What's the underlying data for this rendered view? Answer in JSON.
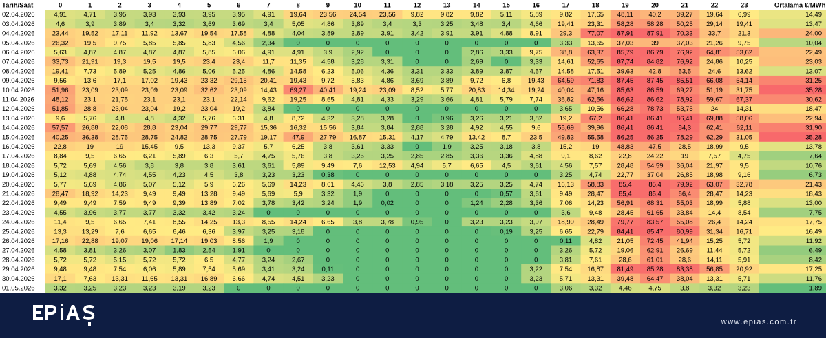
{
  "colors": {
    "low": "#63be7b",
    "mid": "#ffeb84",
    "high": "#f8696b",
    "footer_bg": "#0e1d43",
    "footer_text": "#e6ebf5"
  },
  "footer": {
    "logo_text": "EPİAŞ",
    "website": "www.epias.com.tr"
  },
  "chart_data": {
    "type": "heatmap",
    "corner_label": "Tarih/Saat",
    "avg_label": "Ortalama €/MWh",
    "columns": [
      "0",
      "1",
      "2",
      "3",
      "4",
      "5",
      "6",
      "7",
      "8",
      "9",
      "10",
      "11",
      "12",
      "13",
      "14",
      "15",
      "16",
      "17",
      "18",
      "19",
      "20",
      "21",
      "22",
      "23"
    ],
    "rows": [
      {
        "date": "02.04.2026",
        "values": [
          "4,91",
          "4,71",
          "3,95",
          "3,93",
          "3,93",
          "3,95",
          "3,95",
          "4,91",
          "19,64",
          "23,56",
          "24,54",
          "23,56",
          "9,82",
          "9,82",
          "9,82",
          "5,11",
          "5,89",
          "9,82",
          "17,65",
          "48,11",
          "40,2",
          "39,27",
          "19,64",
          "6,99"
        ],
        "avg": "14,49"
      },
      {
        "date": "03.04.2026",
        "values": [
          "4,6",
          "3,9",
          "3,89",
          "3,4",
          "3,32",
          "3,69",
          "3,69",
          "3,4",
          "5,05",
          "4,86",
          "3,89",
          "3,4",
          "3,3",
          "3,25",
          "3,48",
          "3,4",
          "4,66",
          "19,41",
          "23,31",
          "58,28",
          "58,28",
          "50,25",
          "29,14",
          "19,41"
        ],
        "avg": "13,47"
      },
      {
        "date": "04.04.2026",
        "values": [
          "23,44",
          "19,52",
          "17,11",
          "11,92",
          "13,67",
          "19,54",
          "17,58",
          "4,88",
          "4,04",
          "3,89",
          "3,89",
          "3,91",
          "3,42",
          "3,91",
          "3,91",
          "4,88",
          "8,91",
          "29,3",
          "77,07",
          "87,91",
          "87,91",
          "70,33",
          "33,7",
          "21,3"
        ],
        "avg": "24,00"
      },
      {
        "date": "05.04.2026",
        "values": [
          "26,32",
          "19,5",
          "9,75",
          "5,85",
          "5,85",
          "5,83",
          "4,56",
          "2,34",
          "0",
          "0",
          "0",
          "0",
          "0",
          "0",
          "0",
          "0",
          "0",
          "3,33",
          "13,65",
          "37,03",
          "39",
          "37,03",
          "21,26",
          "9,75"
        ],
        "avg": "10,04"
      },
      {
        "date": "06.04.2026",
        "values": [
          "5,63",
          "4,87",
          "4,87",
          "4,87",
          "4,87",
          "5,85",
          "6,06",
          "4,91",
          "4,91",
          "3,9",
          "2,92",
          "0",
          "0",
          "0",
          "2,86",
          "3,33",
          "9,75",
          "38,8",
          "63,37",
          "85,79",
          "86,79",
          "76,92",
          "64,81",
          "53,62"
        ],
        "avg": "22,49"
      },
      {
        "date": "07.04.2026",
        "values": [
          "33,73",
          "21,91",
          "19,3",
          "19,5",
          "19,5",
          "23,4",
          "23,4",
          "11,7",
          "11,35",
          "4,58",
          "3,28",
          "3,31",
          "0",
          "0",
          "2,69",
          "0",
          "3,33",
          "14,61",
          "52,65",
          "87,74",
          "84,82",
          "76,92",
          "24,86",
          "10,25"
        ],
        "avg": "23,03"
      },
      {
        "date": "08.04.2026",
        "values": [
          "19,41",
          "7,73",
          "5,89",
          "5,25",
          "4,86",
          "5,06",
          "5,25",
          "4,86",
          "14,58",
          "6,23",
          "5,06",
          "4,36",
          "3,31",
          "3,33",
          "3,89",
          "3,87",
          "4,57",
          "14,58",
          "17,51",
          "39,63",
          "42,8",
          "53,5",
          "24,6",
          "13,62"
        ],
        "avg": "13,07"
      },
      {
        "date": "09.04.2026",
        "values": [
          "9,56",
          "13,6",
          "17,1",
          "17,02",
          "19,43",
          "23,32",
          "29,15",
          "20,41",
          "19,43",
          "9,72",
          "5,83",
          "4,86",
          "3,69",
          "3,89",
          "9,72",
          "6,8",
          "19,43",
          "64,59",
          "71,83",
          "87,45",
          "87,45",
          "85,51",
          "66,08",
          "54,14"
        ],
        "avg": "31,25"
      },
      {
        "date": "10.04.2026",
        "values": [
          "51,96",
          "23,09",
          "23,09",
          "23,09",
          "23,09",
          "32,62",
          "23,09",
          "14,43",
          "69,27",
          "40,41",
          "19,24",
          "23,09",
          "8,52",
          "5,77",
          "20,83",
          "14,34",
          "19,24",
          "40,04",
          "47,16",
          "85,63",
          "86,59",
          "69,27",
          "51,19",
          "31,75"
        ],
        "avg": "35,28"
      },
      {
        "date": "11.04.2026",
        "values": [
          "48,12",
          "23,1",
          "21,75",
          "23,1",
          "23,1",
          "23,1",
          "22,14",
          "9,62",
          "19,25",
          "8,65",
          "4,81",
          "4,33",
          "3,29",
          "3,66",
          "4,81",
          "5,79",
          "7,74",
          "36,82",
          "62,56",
          "86,62",
          "86,62",
          "78,92",
          "59,67",
          "67,37"
        ],
        "avg": "30,62"
      },
      {
        "date": "12.04.2026",
        "values": [
          "51,85",
          "28,8",
          "23,04",
          "23,04",
          "19,2",
          "23,04",
          "19,2",
          "3,84",
          "0",
          "0",
          "0",
          "0",
          "0",
          "0",
          "0",
          "0",
          "0",
          "3,65",
          "10,56",
          "66,28",
          "78,73",
          "53,75",
          "24",
          "14,31"
        ],
        "avg": "18,47"
      },
      {
        "date": "13.04.2026",
        "values": [
          "9,6",
          "5,76",
          "4,8",
          "4,8",
          "4,32",
          "5,76",
          "6,31",
          "4,8",
          "8,72",
          "4,32",
          "3,28",
          "3,28",
          "0",
          "0,96",
          "3,26",
          "3,21",
          "3,82",
          "19,2",
          "67,2",
          "86,41",
          "86,41",
          "86,41",
          "69,88",
          "58,06"
        ],
        "avg": "22,94"
      },
      {
        "date": "14.04.2026",
        "values": [
          "57,57",
          "26,88",
          "22,08",
          "28,8",
          "23,04",
          "29,77",
          "29,77",
          "15,36",
          "16,32",
          "15,56",
          "3,84",
          "3,84",
          "2,88",
          "3,28",
          "4,92",
          "4,55",
          "9,6",
          "55,69",
          "39,96",
          "86,41",
          "86,41",
          "84,3",
          "62,41",
          "62,11"
        ],
        "avg": "31,90"
      },
      {
        "date": "15.04.2026",
        "values": [
          "40,25",
          "36,38",
          "28,75",
          "28,75",
          "24,82",
          "28,75",
          "27,79",
          "19,17",
          "47,9",
          "27,79",
          "16,87",
          "15,31",
          "4,17",
          "4,79",
          "13,42",
          "8,7",
          "23,5",
          "49,83",
          "55,58",
          "86,25",
          "86,25",
          "78,29",
          "62,29",
          "31,05"
        ],
        "avg": "35,28"
      },
      {
        "date": "16.04.2026",
        "values": [
          "22,8",
          "19",
          "19",
          "15,45",
          "9,5",
          "13,3",
          "9,37",
          "5,7",
          "6,25",
          "3,8",
          "3,61",
          "3,33",
          "0",
          "1,9",
          "3,25",
          "3,18",
          "3,8",
          "15,2",
          "19",
          "48,83",
          "47,5",
          "28,5",
          "18,99",
          "9,5"
        ],
        "avg": "13,78"
      },
      {
        "date": "17.04.2026",
        "values": [
          "8,84",
          "9,5",
          "6,65",
          "6,21",
          "5,89",
          "6,3",
          "5,7",
          "4,75",
          "5,76",
          "3,8",
          "3,25",
          "3,25",
          "2,85",
          "2,85",
          "3,36",
          "3,36",
          "4,88",
          "9,1",
          "8,62",
          "22,8",
          "24,22",
          "19",
          "7,57",
          "4,75"
        ],
        "avg": "7,64"
      },
      {
        "date": "18.04.2026",
        "values": [
          "5,72",
          "5,69",
          "4,56",
          "3,8",
          "3,8",
          "3,8",
          "3,61",
          "3,61",
          "5,89",
          "9,49",
          "7,6",
          "12,53",
          "4,94",
          "5,7",
          "6,65",
          "4,5",
          "3,61",
          "4,56",
          "7,57",
          "28,48",
          "54,59",
          "36,04",
          "21,97",
          "9,5"
        ],
        "avg": "10,76"
      },
      {
        "date": "19.04.2026",
        "values": [
          "5,12",
          "4,88",
          "4,74",
          "4,55",
          "4,23",
          "4,5",
          "3,8",
          "3,23",
          "3,23",
          "0,38",
          "0",
          "0",
          "0",
          "0",
          "0",
          "0",
          "0",
          "3,25",
          "4,74",
          "22,77",
          "37,04",
          "26,85",
          "18,98",
          "9,16"
        ],
        "avg": "6,73"
      },
      {
        "date": "20.04.2026",
        "values": [
          "5,77",
          "5,69",
          "4,86",
          "5,07",
          "5,12",
          "5,9",
          "6,26",
          "5,69",
          "14,23",
          "8,61",
          "4,46",
          "3,8",
          "2,85",
          "3,18",
          "3,25",
          "3,25",
          "4,74",
          "16,13",
          "58,83",
          "85,4",
          "85,4",
          "79,92",
          "63,07",
          "32,78"
        ],
        "avg": "21,43"
      },
      {
        "date": "21.04.2026",
        "values": [
          "28,47",
          "18,92",
          "14,23",
          "9,49",
          "9,49",
          "13,28",
          "9,49",
          "5,69",
          "5,9",
          "3,32",
          "1,9",
          "0",
          "0",
          "0",
          "0",
          "0,57",
          "3,61",
          "9,49",
          "28,47",
          "85,4",
          "85,4",
          "66,4",
          "28,47",
          "14,23"
        ],
        "avg": "18,43"
      },
      {
        "date": "22.04.2026",
        "values": [
          "9,49",
          "9,49",
          "7,59",
          "9,49",
          "9,39",
          "13,89",
          "7,02",
          "3,78",
          "3,42",
          "3,24",
          "1,9",
          "0,02",
          "0",
          "0",
          "1,24",
          "2,28",
          "3,36",
          "7,06",
          "14,23",
          "56,91",
          "68,31",
          "55,03",
          "18,99",
          "5,88"
        ],
        "avg": "13,00"
      },
      {
        "date": "23.04.2026",
        "values": [
          "4,55",
          "3,96",
          "3,77",
          "3,77",
          "3,32",
          "3,42",
          "3,24",
          "0",
          "0",
          "0",
          "0",
          "0",
          "0",
          "0",
          "0",
          "0",
          "0",
          "3,6",
          "9,48",
          "28,45",
          "61,65",
          "33,84",
          "14,4",
          "8,54"
        ],
        "avg": "7,75"
      },
      {
        "date": "24.04.2026",
        "values": [
          "11,4",
          "9,5",
          "6,65",
          "7,41",
          "8,55",
          "14,25",
          "13,3",
          "8,55",
          "14,24",
          "6,65",
          "3,8",
          "3,78",
          "0,95",
          "0",
          "3,23",
          "3,23",
          "3,97",
          "18,99",
          "28,49",
          "79,77",
          "83,57",
          "55,08",
          "26,4",
          "14,24"
        ],
        "avg": "17,75"
      },
      {
        "date": "25.04.2026",
        "values": [
          "13,3",
          "13,29",
          "7,6",
          "6,65",
          "6,46",
          "6,36",
          "3,97",
          "3,25",
          "3,18",
          "0",
          "0",
          "0",
          "0",
          "0",
          "0",
          "0,19",
          "3,25",
          "6,65",
          "22,79",
          "84,41",
          "85,47",
          "80,99",
          "31,34",
          "16,71"
        ],
        "avg": "16,49"
      },
      {
        "date": "26.04.2026",
        "values": [
          "17,16",
          "22,88",
          "19,07",
          "19,06",
          "17,14",
          "19,03",
          "8,56",
          "1,9",
          "0",
          "0",
          "0",
          "0",
          "0",
          "0",
          "0",
          "0",
          "0",
          "0,11",
          "4,82",
          "21,05",
          "72,45",
          "41,94",
          "15,25",
          "5,72"
        ],
        "avg": "11,92"
      },
      {
        "date": "27.04.2026",
        "values": [
          "4,58",
          "3,81",
          "3,26",
          "3,07",
          "1,83",
          "2,54",
          "1,91",
          "0",
          "0",
          "0",
          "0",
          "0",
          "0",
          "0",
          "0",
          "0",
          "0",
          "3,26",
          "5,72",
          "19,06",
          "62,91",
          "26,69",
          "11,44",
          "5,72"
        ],
        "avg": "6,49"
      },
      {
        "date": "28.04.2026",
        "values": [
          "5,72",
          "5,72",
          "5,15",
          "5,72",
          "5,72",
          "6,5",
          "4,77",
          "3,24",
          "2,67",
          "0",
          "0",
          "0",
          "0",
          "0",
          "0",
          "0",
          "0",
          "3,81",
          "7,61",
          "28,6",
          "61,01",
          "28,6",
          "14,11",
          "5,91"
        ],
        "avg": "8,42"
      },
      {
        "date": "29.04.2026",
        "values": [
          "9,48",
          "9,48",
          "7,54",
          "6,06",
          "5,89",
          "7,54",
          "5,69",
          "3,41",
          "3,24",
          "0,11",
          "0",
          "0",
          "0",
          "0",
          "0",
          "0",
          "3,22",
          "7,54",
          "16,87",
          "81,49",
          "85,28",
          "83,38",
          "56,85",
          "20,92"
        ],
        "avg": "17,25"
      },
      {
        "date": "30.04.2026",
        "values": [
          "17,1",
          "7,63",
          "13,31",
          "11,65",
          "13,31",
          "16,89",
          "6,66",
          "4,74",
          "4,51",
          "3,23",
          "0",
          "0",
          "0",
          "0",
          "0",
          "0",
          "3,23",
          "5,71",
          "13,31",
          "39,48",
          "64,47",
          "38,04",
          "13,31",
          "5,71"
        ],
        "avg": "11,76"
      },
      {
        "date": "01.05.2026",
        "values": [
          "3,32",
          "3,25",
          "3,23",
          "3,23",
          "3,19",
          "3,23",
          "0",
          "0",
          "0",
          "0",
          "0",
          "0",
          "0",
          "0",
          "0",
          "0",
          "0",
          "3,06",
          "3,32",
          "4,46",
          "4,75",
          "3,8",
          "3,32",
          "3,23"
        ],
        "avg": "1,89"
      }
    ]
  }
}
